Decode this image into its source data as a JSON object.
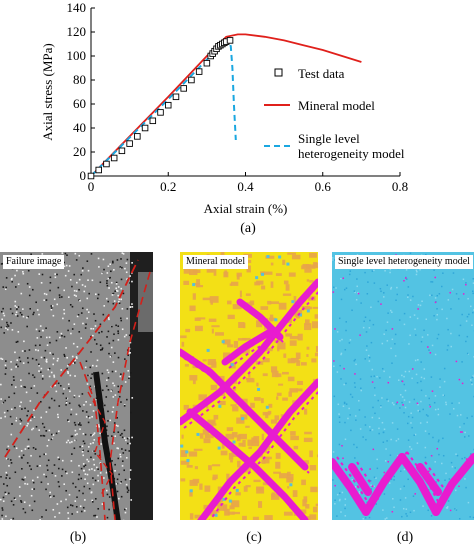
{
  "chart_data": {
    "type": "line",
    "xlabel": "Axial strain (%)",
    "ylabel": "Axial stress (MPa)",
    "xlim": [
      0,
      0.8
    ],
    "ylim": [
      0,
      140
    ],
    "xticks": [
      "0",
      "0.2",
      "0.4",
      "0.6",
      "0.8"
    ],
    "yticks": [
      "0",
      "20",
      "40",
      "60",
      "80",
      "100",
      "120",
      "140"
    ],
    "grid": false,
    "legend_position": "right",
    "series": [
      {
        "name": "Test data",
        "style": "markers",
        "marker": "open-square",
        "color": "#000000",
        "x": [
          0,
          0.02,
          0.04,
          0.06,
          0.08,
          0.1,
          0.12,
          0.14,
          0.16,
          0.18,
          0.2,
          0.22,
          0.24,
          0.26,
          0.28,
          0.3,
          0.31,
          0.315,
          0.32,
          0.325,
          0.33,
          0.335,
          0.34,
          0.345,
          0.35,
          0.36
        ],
        "y": [
          0,
          5,
          10,
          15,
          21,
          27,
          33,
          40,
          46,
          53,
          59,
          66,
          73,
          80,
          87,
          94,
          100,
          102,
          104,
          106,
          108,
          109,
          110,
          111,
          112,
          113
        ]
      },
      {
        "name": "Mineral model",
        "style": "solid",
        "color": "#e0201b",
        "x": [
          0,
          0.1,
          0.2,
          0.3,
          0.35,
          0.38,
          0.4,
          0.45,
          0.5,
          0.55,
          0.6,
          0.65,
          0.7
        ],
        "y": [
          0,
          33,
          66,
          100,
          116,
          118,
          118,
          116,
          113,
          109,
          105,
          100,
          95
        ]
      },
      {
        "name": "Single level heterogeneity model",
        "label_lines": [
          "Single level",
          "heterogeneity model"
        ],
        "style": "dashed",
        "color": "#1aa7e0",
        "x": [
          0,
          0.1,
          0.2,
          0.3,
          0.34,
          0.355,
          0.362,
          0.366,
          0.37,
          0.375
        ],
        "y": [
          0,
          32,
          64,
          97,
          110,
          114,
          108,
          90,
          60,
          30
        ]
      }
    ]
  },
  "captions": {
    "a": "(a)",
    "b": "(b)",
    "c": "(c)",
    "d": "(d)"
  },
  "panels": {
    "b": {
      "label": "Failure image"
    },
    "c": {
      "label": "Mineral model",
      "base_color": "#f3e016",
      "band_color": "#e81ccf",
      "grain_color": "#e8a44a",
      "spot_color": "#5ac0d8"
    },
    "d": {
      "label": "Single level heterogeneity model",
      "base_color": "#53c3e3",
      "band_color": "#e81ccf"
    }
  }
}
